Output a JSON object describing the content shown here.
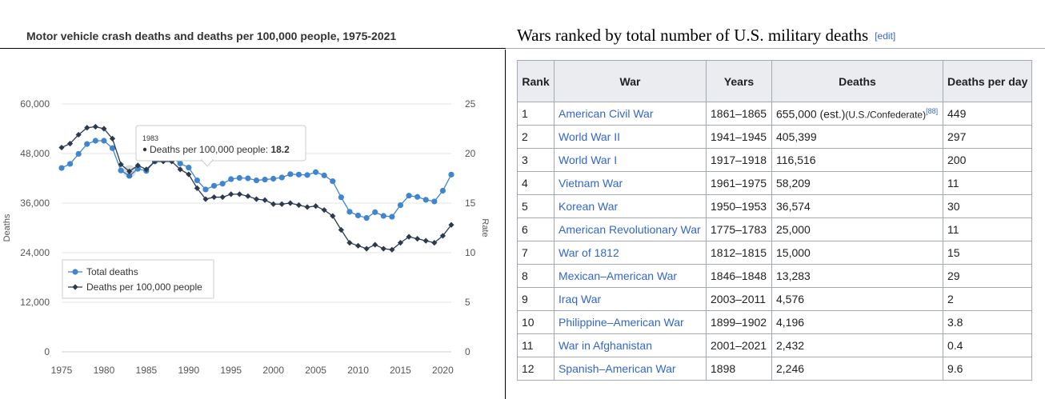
{
  "chart_data": {
    "type": "line",
    "title": "Motor vehicle crash deaths and deaths per 100,000 people, 1975-2021",
    "ylabel": "Deaths",
    "y2label": "Rate",
    "ylim": [
      0,
      60000
    ],
    "y2lim": [
      0,
      25
    ],
    "yticks": [
      "0",
      "12,000",
      "24,000",
      "36,000",
      "48,000",
      "60,000"
    ],
    "y2ticks": [
      "0",
      "5",
      "10",
      "15",
      "20",
      "25"
    ],
    "xticks": [
      "1975",
      "1980",
      "1985",
      "1990",
      "1995",
      "2000",
      "2005",
      "2010",
      "2015",
      "2020"
    ],
    "legend_position": "bottom-left",
    "tooltip": {
      "year": "1983",
      "label": "Deaths per 100,000 people: ",
      "value": "18.2"
    },
    "series": [
      {
        "name": "Total deaths",
        "color": "#3f85d0",
        "x": [
          1975,
          1976,
          1977,
          1978,
          1979,
          1980,
          1981,
          1982,
          1983,
          1984,
          1985,
          1986,
          1987,
          1988,
          1989,
          1990,
          1991,
          1992,
          1993,
          1994,
          1995,
          1996,
          1997,
          1998,
          1999,
          2000,
          2001,
          2002,
          2003,
          2004,
          2005,
          2006,
          2007,
          2008,
          2009,
          2010,
          2011,
          2012,
          2013,
          2014,
          2015,
          2016,
          2017,
          2018,
          2019,
          2020,
          2021
        ],
        "values": [
          44500,
          45500,
          47900,
          50300,
          51100,
          51100,
          49300,
          43900,
          42600,
          44300,
          43800,
          46100,
          46400,
          47100,
          45600,
          44600,
          41500,
          39300,
          40200,
          40700,
          41800,
          42100,
          42000,
          41500,
          41700,
          41900,
          42200,
          43000,
          42900,
          42800,
          43500,
          42700,
          41300,
          37400,
          33900,
          33000,
          32400,
          33800,
          32900,
          32700,
          35500,
          37800,
          37500,
          36800,
          36400,
          39000,
          42900
        ]
      },
      {
        "name": "Deaths per 100,000 people",
        "color": "#2b3a4e",
        "x": [
          1975,
          1976,
          1977,
          1978,
          1979,
          1980,
          1981,
          1982,
          1983,
          1984,
          1985,
          1986,
          1987,
          1988,
          1989,
          1990,
          1991,
          1992,
          1993,
          1994,
          1995,
          1996,
          1997,
          1998,
          1999,
          2000,
          2001,
          2002,
          2003,
          2004,
          2005,
          2006,
          2007,
          2008,
          2009,
          2010,
          2011,
          2012,
          2013,
          2014,
          2015,
          2016,
          2017,
          2018,
          2019,
          2020,
          2021
        ],
        "values": [
          20.6,
          21.0,
          21.9,
          22.6,
          22.7,
          22.5,
          21.5,
          18.9,
          18.2,
          18.8,
          18.4,
          19.2,
          19.2,
          19.2,
          18.4,
          17.9,
          16.5,
          15.4,
          15.6,
          15.6,
          15.9,
          15.9,
          15.7,
          15.4,
          15.3,
          14.9,
          14.9,
          15.0,
          14.8,
          14.6,
          14.7,
          14.3,
          13.7,
          12.3,
          11.0,
          10.7,
          10.4,
          10.8,
          10.4,
          10.3,
          11.0,
          11.6,
          11.4,
          11.2,
          11.0,
          11.7,
          12.8
        ]
      }
    ]
  },
  "wars": {
    "heading": "Wars ranked by total number of U.S. military deaths",
    "edit_label": "[edit]",
    "columns": [
      "Rank",
      "War",
      "Years",
      "Deaths",
      "Deaths per day"
    ],
    "rows": [
      {
        "rank": "1",
        "war": "American Civil War",
        "years": "1861–1865",
        "deaths": "655,000 (est.)",
        "deaths_note": "(U.S./Confederate)",
        "ref": "[88]",
        "per_day": "449"
      },
      {
        "rank": "2",
        "war": "World War II",
        "years": "1941–1945",
        "deaths": "405,399",
        "per_day": "297"
      },
      {
        "rank": "3",
        "war": "World War I",
        "years": "1917–1918",
        "deaths": "116,516",
        "per_day": "200"
      },
      {
        "rank": "4",
        "war": "Vietnam War",
        "years": "1961–1975",
        "deaths": "58,209",
        "per_day": "11"
      },
      {
        "rank": "5",
        "war": "Korean War",
        "years": "1950–1953",
        "deaths": "36,574",
        "per_day": "30"
      },
      {
        "rank": "6",
        "war": "American Revolutionary War",
        "years": "1775–1783",
        "deaths": "25,000",
        "per_day": "11"
      },
      {
        "rank": "7",
        "war": "War of 1812",
        "years": "1812–1815",
        "deaths": "15,000",
        "per_day": "15"
      },
      {
        "rank": "8",
        "war": "Mexican–American War",
        "years": "1846–1848",
        "deaths": "13,283",
        "per_day": "29"
      },
      {
        "rank": "9",
        "war": "Iraq War",
        "years": "2003–2011",
        "deaths": "4,576",
        "per_day": "2"
      },
      {
        "rank": "10",
        "war": "Philippine–American War",
        "years": "1899–1902",
        "deaths": "4,196",
        "per_day": "3.8"
      },
      {
        "rank": "11",
        "war": "War in Afghanistan",
        "years": "2001–2021",
        "deaths": "2,432",
        "per_day": "0.4"
      },
      {
        "rank": "12",
        "war": "Spanish–American War",
        "years": "1898",
        "deaths": "2,246",
        "per_day": "9.6"
      }
    ]
  }
}
